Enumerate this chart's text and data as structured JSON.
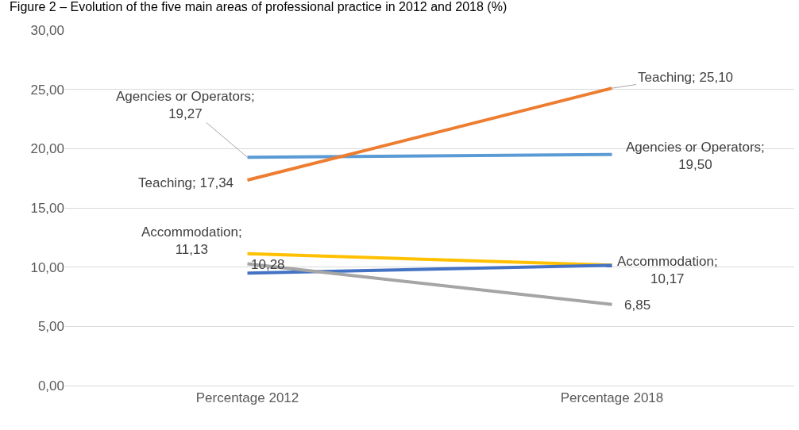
{
  "chart_data": {
    "type": "line",
    "title": "Figure 2 – Evolution of the five main areas of professional practice in 2012 and 2018 (%)",
    "categories": [
      "Percentage 2012",
      "Percentage 2018"
    ],
    "series": [
      {
        "color": "#5b9bd5",
        "values": [
          19.27,
          19.5
        ],
        "value_labels": [
          "Agencies or Operators; 19,27",
          "Agencies or Operators; 19,50"
        ]
      },
      {
        "color": "#ed7d31",
        "values": [
          17.34,
          25.1
        ],
        "value_labels": [
          "Teaching; 17,34",
          "Teaching; 25,10"
        ]
      },
      {
        "color": "#ffc000",
        "values": [
          11.13,
          10.17
        ],
        "value_labels": [
          "Accommodation; 11,13",
          "Accommodation; 10,17"
        ]
      },
      {
        "color": "#4472c4",
        "values": [
          9.5,
          10.15
        ],
        "value_labels": [
          null,
          null
        ]
      },
      {
        "color": "#a5a5a5",
        "values": [
          10.28,
          6.85
        ],
        "value_labels": [
          "10,28",
          "6,85"
        ]
      }
    ],
    "ylim": [
      0,
      30
    ],
    "yticks": [
      {
        "value": 0,
        "label": "0,00"
      },
      {
        "value": 5,
        "label": "5,00"
      },
      {
        "value": 10,
        "label": "10,00"
      },
      {
        "value": 15,
        "label": "15,00"
      },
      {
        "value": 20,
        "label": "20,00"
      },
      {
        "value": 25,
        "label": "25,00"
      },
      {
        "value": 30,
        "label": "30,00"
      }
    ],
    "grid": "y",
    "marker": "none",
    "line_style": "solid"
  }
}
